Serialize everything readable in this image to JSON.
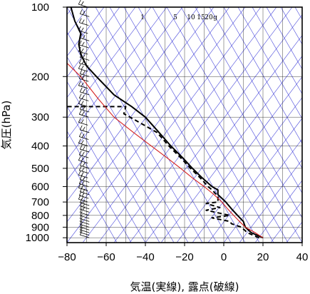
{
  "chart_data": {
    "type": "line",
    "title": "",
    "xlabel": "気温(実線), 露点(破線)",
    "ylabel": "気圧(hPa)",
    "xlim": [
      -80,
      40
    ],
    "ylim": [
      1050,
      100
    ],
    "y_scale": "log",
    "grid": true,
    "x_ticks": [
      -80,
      -60,
      -40,
      -20,
      0,
      20,
      40
    ],
    "x_tick_labels": [
      "−80",
      "−60",
      "−40",
      "−20",
      "0",
      "20",
      "40"
    ],
    "y_ticks": [
      100,
      200,
      300,
      400,
      500,
      600,
      700,
      800,
      900,
      1000
    ],
    "y_tick_labels": [
      "100",
      "200",
      "300",
      "400",
      "500",
      "600",
      "700",
      "800",
      "900",
      "1000"
    ],
    "mixing_ratio_labels": [
      "1",
      "5",
      "10",
      "15",
      "20",
      "g"
    ],
    "colors": {
      "temperature": "#000000",
      "dewpoint": "#000000",
      "parcel": "#d42020",
      "adiabats": "#3a3ad8",
      "grid": "#000000"
    },
    "series": [
      {
        "key": "temperature",
        "style": "solid",
        "points": [
          [
            20,
            1000
          ],
          [
            14,
            950
          ],
          [
            11,
            900
          ],
          [
            10,
            850
          ],
          [
            7,
            800
          ],
          [
            4,
            750
          ],
          [
            1,
            700
          ],
          [
            -3,
            650
          ],
          [
            -3,
            620
          ],
          [
            -6,
            600
          ],
          [
            -11,
            550
          ],
          [
            -16,
            500
          ],
          [
            -21,
            450
          ],
          [
            -27,
            400
          ],
          [
            -33,
            350
          ],
          [
            -40,
            300
          ],
          [
            -47,
            270
          ],
          [
            -56,
            240
          ],
          [
            -65,
            200
          ],
          [
            -70,
            180
          ],
          [
            -73,
            160
          ],
          [
            -74,
            145
          ],
          [
            -73,
            130
          ],
          [
            -76,
            115
          ],
          [
            -78,
            100
          ]
        ]
      },
      {
        "key": "dewpoint",
        "style": "dashed",
        "points": [
          [
            18,
            1000
          ],
          [
            12,
            950
          ],
          [
            9,
            900
          ],
          [
            4,
            870
          ],
          [
            3,
            850
          ],
          [
            -6,
            820
          ],
          [
            3,
            800
          ],
          [
            -9,
            760
          ],
          [
            -2,
            740
          ],
          [
            -9,
            710
          ],
          [
            -3,
            700
          ],
          [
            -3,
            660
          ],
          [
            -6,
            620
          ],
          [
            -8,
            600
          ],
          [
            -12,
            550
          ],
          [
            -17,
            500
          ],
          [
            -22,
            450
          ],
          [
            -28,
            400
          ],
          [
            -34,
            350
          ],
          [
            -42,
            320
          ],
          [
            -51,
            290
          ],
          [
            -50,
            270
          ],
          [
            -80,
            270
          ]
        ]
      },
      {
        "key": "parcel",
        "style": "solid",
        "points": [
          [
            20,
            1000
          ],
          [
            16,
            950
          ],
          [
            11,
            900
          ],
          [
            8,
            850
          ],
          [
            5,
            800
          ],
          [
            2,
            750
          ],
          [
            -1,
            700
          ],
          [
            -5,
            650
          ],
          [
            -10,
            600
          ],
          [
            -16,
            550
          ],
          [
            -22,
            500
          ],
          [
            -29,
            450
          ],
          [
            -37,
            400
          ],
          [
            -46,
            350
          ],
          [
            -56,
            300
          ],
          [
            -64,
            250
          ],
          [
            -73,
            200
          ],
          [
            -80,
            175
          ]
        ]
      }
    ],
    "wind_barbs_pressures": [
      1000,
      975,
      950,
      925,
      900,
      875,
      850,
      825,
      800,
      775,
      750,
      725,
      700,
      675,
      650,
      625,
      600,
      575,
      550,
      525,
      500,
      475,
      450,
      425,
      400,
      375,
      350,
      325,
      300,
      285,
      270,
      255,
      240,
      225,
      210,
      200,
      190,
      180,
      170,
      160,
      150,
      140,
      130,
      120,
      110,
      100
    ]
  }
}
